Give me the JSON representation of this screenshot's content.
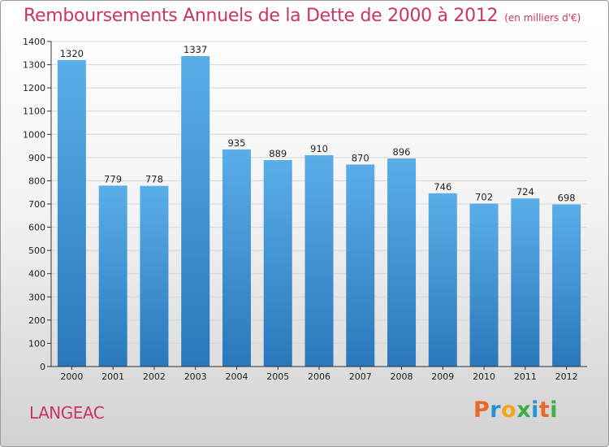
{
  "chart_data": {
    "type": "bar",
    "title": "Remboursements Annuels de la Dette de 2000 à 2012",
    "subtitle": "(en milliers d'€)",
    "categories": [
      "2000",
      "2001",
      "2002",
      "2003",
      "2004",
      "2005",
      "2006",
      "2007",
      "2008",
      "2009",
      "2010",
      "2011",
      "2012"
    ],
    "values": [
      1320,
      779,
      778,
      1337,
      935,
      889,
      910,
      870,
      896,
      746,
      702,
      724,
      698
    ],
    "ylim": [
      0,
      1400
    ],
    "yticks": [
      0,
      100,
      200,
      300,
      400,
      500,
      600,
      700,
      800,
      900,
      1000,
      1100,
      1200,
      1300,
      1400
    ],
    "grid": true,
    "legend": "none",
    "bar_color_top": "#5aaee8",
    "bar_color_bottom": "#2a78bb"
  },
  "location": "LANGEAC",
  "brand": {
    "letters": [
      "P",
      "r",
      "o",
      "x",
      "i",
      "t",
      "i"
    ],
    "colors": [
      "#e8692a",
      "#2a8fd6",
      "#f2a51a",
      "#3fae49",
      "#2a8fd6",
      "#e8692a",
      "#3fae49"
    ]
  },
  "colors": {
    "title": "#cc3366",
    "grid": "#d6d6d6"
  }
}
